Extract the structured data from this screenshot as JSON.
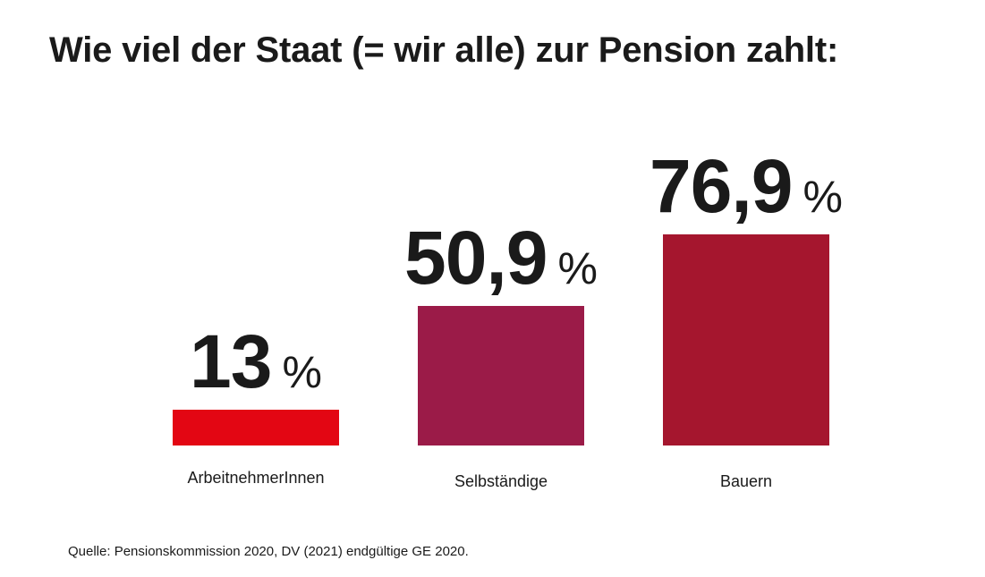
{
  "chart_data": {
    "type": "bar",
    "title": "Wie viel der Staat (= wir alle) zur Pension zahlt:",
    "categories": [
      "ArbeitnehmerInnen",
      "Selbständige",
      "Bauern"
    ],
    "values": [
      13,
      50.9,
      76.9
    ],
    "value_labels": [
      "13",
      "50,9",
      "76,9"
    ],
    "unit": "%",
    "colors": [
      "#e30613",
      "#9b1b48",
      "#a5162e"
    ],
    "ylim": [
      0,
      100
    ],
    "grid": false,
    "xlabel": "",
    "ylabel": ""
  },
  "source": "Quelle: Pensionskommission 2020, DV (2021) endgültige GE 2020."
}
